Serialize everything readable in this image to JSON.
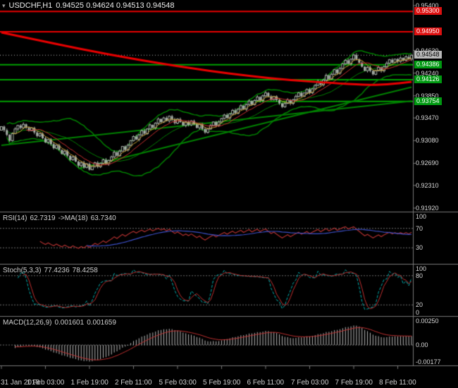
{
  "title": {
    "icon": "▾",
    "symbol": "USDCHF,H1",
    "ohlc": "0.94525 0.94624 0.94513 0.94548"
  },
  "colors": {
    "background": "#000000",
    "panel_border": "#787878",
    "axis_text": "#d6d6d6",
    "candle": "#a8b0a8",
    "candle_bull_fill": "#000000",
    "bollinger": "#008000",
    "trendline": "#008000",
    "level_red": "#e80000",
    "level_green": "#00a000",
    "ma_slow": "#e80000",
    "ma_fast1": "#c8a032",
    "ma_fast2": "#cc3030",
    "dashed_level": "#6e6e6e",
    "rsi_line": "#b03030",
    "rsi_ma": "#3c50c8",
    "stoch_main": "#00b0b0",
    "stoch_signal": "#c03030",
    "macd_hist": "#b8b8b8",
    "macd_signal": "#c03030",
    "badge_red": "#dd1111",
    "badge_green": "#009911",
    "badge_current_bg": "#b8b8b8",
    "badge_current_fg": "#000000"
  },
  "chart_data": {
    "type": "candlestick",
    "symbol": "USDCHF",
    "timeframe": "H1",
    "current_bar": {
      "open": "0.94525",
      "high": "0.94624",
      "low": "0.94513",
      "close": "0.94548"
    },
    "price_range": {
      "min": 0.9192,
      "max": 0.954
    },
    "bollinger": {
      "period": 20,
      "deviation": 2
    },
    "fast_ma_periods": [
      5,
      10
    ],
    "closes": [
      0.9332,
      0.9326,
      0.9318,
      0.9308,
      0.932,
      0.9328,
      0.9334,
      0.933,
      0.9336,
      0.933,
      0.9325,
      0.933,
      0.9322,
      0.9316,
      0.932,
      0.9312,
      0.9305,
      0.931,
      0.9302,
      0.9295,
      0.93,
      0.9292,
      0.9285,
      0.929,
      0.9282,
      0.9275,
      0.928,
      0.9272,
      0.9265,
      0.927,
      0.9262,
      0.9268,
      0.9258,
      0.9264,
      0.927,
      0.9263,
      0.9269,
      0.9275,
      0.9268,
      0.9274,
      0.928,
      0.9288,
      0.9282,
      0.929,
      0.9298,
      0.9292,
      0.93,
      0.9308,
      0.9315,
      0.931,
      0.9318,
      0.9325,
      0.932,
      0.9328,
      0.9335,
      0.933,
      0.9338,
      0.9345,
      0.934,
      0.9347,
      0.9342,
      0.935,
      0.9344,
      0.9338,
      0.9345,
      0.934,
      0.9334,
      0.934,
      0.9335,
      0.9342,
      0.9336,
      0.933,
      0.9336,
      0.9328,
      0.9322,
      0.9328,
      0.9334,
      0.934,
      0.9334,
      0.934,
      0.9346,
      0.9352,
      0.9347,
      0.9354,
      0.936,
      0.9355,
      0.9362,
      0.9368,
      0.9362,
      0.937,
      0.9376,
      0.937,
      0.9377,
      0.9383,
      0.9377,
      0.9385,
      0.939,
      0.9384,
      0.9378,
      0.9384,
      0.9378,
      0.9372,
      0.9366,
      0.9372,
      0.9378,
      0.9372,
      0.9378,
      0.9384,
      0.939,
      0.9384,
      0.939,
      0.9396,
      0.939,
      0.9397,
      0.9403,
      0.941,
      0.9404,
      0.9412,
      0.942,
      0.9414,
      0.9422,
      0.943,
      0.9424,
      0.9432,
      0.944,
      0.9446,
      0.944,
      0.9448,
      0.9455,
      0.9448,
      0.9442,
      0.9435,
      0.9428,
      0.9434,
      0.9428,
      0.9422,
      0.9428,
      0.9434,
      0.9428,
      0.9435,
      0.9441,
      0.9447,
      0.9442,
      0.9448,
      0.9444,
      0.945,
      0.9446,
      0.9452,
      0.9448,
      0.94548
    ],
    "levels": [
      {
        "label": "0.95300",
        "value": 0.953,
        "color": "red"
      },
      {
        "label": "0.94950",
        "value": 0.9495,
        "color": "red"
      },
      {
        "label": "0.94386",
        "value": 0.94386,
        "color": "green"
      },
      {
        "label": "0.94126",
        "value": 0.94126,
        "color": "green"
      },
      {
        "label": "0.93754",
        "value": 0.93754,
        "color": "green"
      }
    ],
    "current_price": {
      "label": "0.94548",
      "value": 0.94548
    },
    "trendlines": [
      {
        "from": [
          0,
          0.93
        ],
        "to": [
          149,
          0.9376
        ]
      },
      {
        "from": [
          28,
          0.926
        ],
        "to": [
          149,
          0.94
        ]
      }
    ],
    "red_ma_points": [
      [
        0,
        0.9494
      ],
      [
        20,
        0.9474
      ],
      [
        40,
        0.9455
      ],
      [
        60,
        0.9439
      ],
      [
        75,
        0.9428
      ],
      [
        90,
        0.9419
      ],
      [
        105,
        0.9412
      ],
      [
        120,
        0.9407
      ],
      [
        132,
        0.9404
      ],
      [
        140,
        0.9404
      ],
      [
        149,
        0.9409
      ]
    ],
    "axis_ticks": [
      {
        "text": "0.95400",
        "value": 0.954
      },
      {
        "text": "0.94630",
        "value": 0.9463
      },
      {
        "text": "0.94240",
        "value": 0.9424
      },
      {
        "text": "0.93850",
        "value": 0.9385
      },
      {
        "text": "0.93470",
        "value": 0.9347
      },
      {
        "text": "0.93080",
        "value": 0.9308
      },
      {
        "text": "0.92690",
        "value": 0.9269
      },
      {
        "text": "0.92310",
        "value": 0.9231
      },
      {
        "text": "0.91920",
        "value": 0.9192
      }
    ],
    "time_labels": [
      {
        "text": "31 Jan 2018",
        "bar": 0
      },
      {
        "text": "1 Feb 03:00",
        "bar": 16
      },
      {
        "text": "1 Feb 19:00",
        "bar": 32
      },
      {
        "text": "2 Feb 11:00",
        "bar": 48
      },
      {
        "text": "5 Feb 03:00",
        "bar": 64
      },
      {
        "text": "5 Feb 19:00",
        "bar": 80
      },
      {
        "text": "6 Feb 11:00",
        "bar": 96
      },
      {
        "text": "7 Feb 03:00",
        "bar": 112
      },
      {
        "text": "7 Feb 19:00",
        "bar": 128
      },
      {
        "text": "8 Feb 11:00",
        "bar": 144
      }
    ],
    "indicators": {
      "rsi": {
        "name": "RSI(14)",
        "value": "62.7319",
        "ma_name": "->MA(18)",
        "ma_value": "63.7340",
        "range": [
          0,
          100
        ],
        "dashed_levels": [
          70,
          30
        ],
        "axis": [
          {
            "text": "100",
            "value": 100
          },
          {
            "text": "70",
            "value": 70
          },
          {
            "text": "30",
            "value": 30
          }
        ]
      },
      "stoch": {
        "name": "Stoch(5,3,3)",
        "value": "77.4236",
        "signal_value": "78.4258",
        "range": [
          0,
          100
        ],
        "dashed_levels": [
          80,
          20
        ],
        "axis": [
          {
            "text": "100",
            "value": 100
          },
          {
            "text": "80",
            "value": 80
          },
          {
            "text": "20",
            "value": 20
          },
          {
            "text": "0",
            "value": 0
          }
        ]
      },
      "macd": {
        "name": "MACD(12,26,9)",
        "value": "0.001601",
        "signal_value": "0.001659",
        "range": [
          -0.00177,
          0.0025
        ],
        "dashed_levels": [
          0
        ],
        "axis": [
          {
            "text": "0.00250",
            "value": 0.0025
          },
          {
            "text": "0.00",
            "value": 0
          },
          {
            "text": "-0.00177",
            "value": -0.00177
          }
        ]
      }
    }
  }
}
